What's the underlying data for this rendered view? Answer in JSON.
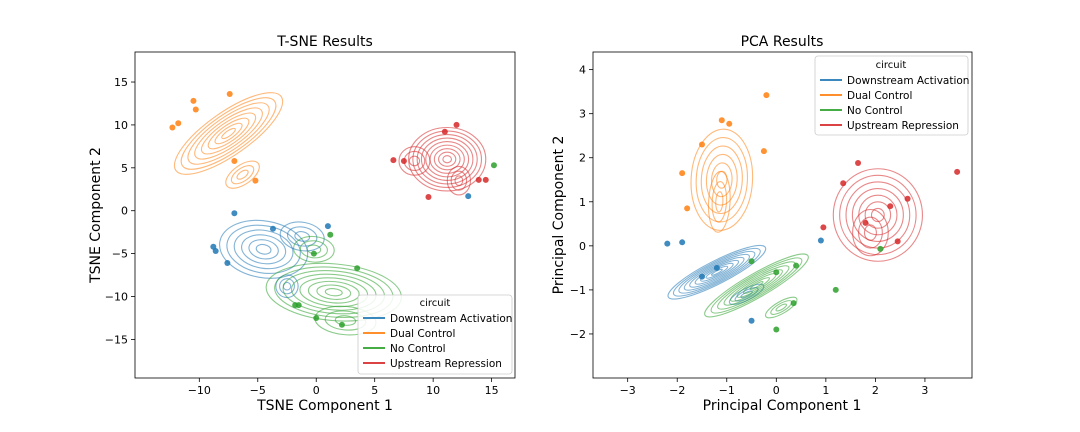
{
  "chart_data": [
    {
      "type": "scatter",
      "overlay": "kde-contours",
      "title": "T-SNE Results",
      "xlabel": "TSNE Component 1",
      "ylabel": "TSNE Component 2",
      "xlim": [
        -15.5,
        17
      ],
      "ylim": [
        -19.5,
        18.5
      ],
      "xticks": [
        -10,
        -5,
        0,
        5,
        10,
        15
      ],
      "yticks": [
        -15,
        -10,
        -5,
        0,
        5,
        10,
        15
      ],
      "xtick_labels": [
        "−10",
        "−5",
        "0",
        "5",
        "10",
        "15"
      ],
      "ytick_labels": [
        "−15",
        "−10",
        "−5",
        "0",
        "5",
        "10",
        "15"
      ],
      "grid": false,
      "legend": {
        "title": "circuit",
        "placement": "lower-right"
      },
      "series": [
        {
          "name": "Downstream Activation",
          "color": "#1f77b4",
          "points": [
            [
              -7,
              -0.3
            ],
            [
              -8.8,
              -4.2
            ],
            [
              -8.6,
              -4.7
            ],
            [
              -7.6,
              -6.1
            ],
            [
              -3.7,
              -2.1
            ],
            [
              1,
              -1.8
            ],
            [
              13,
              1.7
            ]
          ],
          "kde": {
            "cx": -4.5,
            "cy": -4.5,
            "sx": 3.8,
            "sy": 3.3,
            "rot": 10,
            "levels": 6,
            "lobes": [
              [
                -1.2,
                -3,
                0.5,
                0.5
              ],
              [
                -2.5,
                -8.8,
                0.25,
                0.4
              ]
            ]
          }
        },
        {
          "name": "Dual Control",
          "color": "#ff7f0e",
          "points": [
            [
              -12.3,
              9.7
            ],
            [
              -11.8,
              10.2
            ],
            [
              -10.5,
              12.8
            ],
            [
              -10.3,
              11.8
            ],
            [
              -7.4,
              13.6
            ],
            [
              -7,
              5.8
            ],
            [
              -5.2,
              3.5
            ]
          ],
          "kde": {
            "cx": -7.5,
            "cy": 9,
            "sx": 5.5,
            "sy": 2.5,
            "rot": -35,
            "levels": 8,
            "lobes": [
              [
                -6.3,
                4.2,
                0.3,
                0.45
              ]
            ]
          }
        },
        {
          "name": "No Control",
          "color": "#2ca02c",
          "points": [
            [
              -0.2,
              -5
            ],
            [
              1.2,
              -2.8
            ],
            [
              3.5,
              -6.7
            ],
            [
              -1.5,
              -11
            ],
            [
              -1.8,
              -11
            ],
            [
              0,
              -12.5
            ],
            [
              2.2,
              -13.3
            ],
            [
              15.2,
              5.3
            ]
          ],
          "kde": {
            "cx": 1.5,
            "cy": -9.5,
            "sx": 5.8,
            "sy": 3.3,
            "rot": 5,
            "levels": 8,
            "lobes": [
              [
                2.5,
                -12.8,
                0.45,
                0.5
              ],
              [
                -0.2,
                -4.5,
                0.3,
                0.45
              ]
            ]
          }
        },
        {
          "name": "Upstream Repression",
          "color": "#d62728",
          "points": [
            [
              6.6,
              5.9
            ],
            [
              7.5,
              5.8
            ],
            [
              9.6,
              1.6
            ],
            [
              11,
              9.2
            ],
            [
              12,
              10
            ],
            [
              13.9,
              3.6
            ],
            [
              14.5,
              3.6
            ]
          ],
          "kde": {
            "cx": 11.2,
            "cy": 6,
            "sx": 3.3,
            "sy": 3.7,
            "rot": 0,
            "levels": 9,
            "lobes": [
              [
                8.4,
                5.8,
                0.4,
                0.45
              ],
              [
                12.2,
                3.5,
                0.3,
                0.45
              ]
            ]
          }
        }
      ]
    },
    {
      "type": "scatter",
      "overlay": "kde-contours",
      "title": "PCA Results",
      "xlabel": "Principal Component 1",
      "ylabel": "Principal Component 2",
      "xlim": [
        -3.7,
        3.95
      ],
      "ylim": [
        -3.0,
        4.4
      ],
      "xticks": [
        -3,
        -2,
        -1,
        0,
        1,
        2,
        3
      ],
      "yticks": [
        -2,
        -1,
        0,
        1,
        2,
        3,
        4
      ],
      "xtick_labels": [
        "−3",
        "−2",
        "−1",
        "0",
        "1",
        "2",
        "3"
      ],
      "ytick_labels": [
        "−2",
        "−1",
        "0",
        "1",
        "2",
        "3",
        "4"
      ],
      "grid": false,
      "legend": {
        "title": "circuit",
        "placement": "upper-right"
      },
      "series": [
        {
          "name": "Downstream Activation",
          "color": "#1f77b4",
          "points": [
            [
              -2.2,
              0.05
            ],
            [
              -1.9,
              0.08
            ],
            [
              -1.5,
              -0.7
            ],
            [
              -1.2,
              -0.5
            ],
            [
              -0.5,
              -1.7
            ],
            [
              0.9,
              0.12
            ]
          ],
          "kde": {
            "cx": -1.2,
            "cy": -0.6,
            "sx": 1.1,
            "sy": 0.26,
            "rot": -27,
            "levels": 9,
            "lobes": [
              [
                -0.6,
                -1.1,
                0.35,
                0.5
              ]
            ]
          }
        },
        {
          "name": "Dual Control",
          "color": "#ff7f0e",
          "points": [
            [
              -1.8,
              0.85
            ],
            [
              -1.5,
              2.3
            ],
            [
              -1.1,
              2.85
            ],
            [
              -0.95,
              2.77
            ],
            [
              -0.2,
              3.42
            ],
            [
              -0.25,
              2.15
            ],
            [
              -1.9,
              1.65
            ]
          ],
          "kde": {
            "cx": -1.1,
            "cy": 1.5,
            "sx": 0.62,
            "sy": 1.15,
            "rot": 3,
            "levels": 6,
            "lobes": [
              [
                -1.15,
                1.0,
                0.35,
                0.6
              ]
            ]
          }
        },
        {
          "name": "No Control",
          "color": "#2ca02c",
          "points": [
            [
              -0.5,
              -0.35
            ],
            [
              0,
              -0.6
            ],
            [
              0.4,
              -0.45
            ],
            [
              0.35,
              -1.3
            ],
            [
              0,
              -1.9
            ],
            [
              1.2,
              -1.0
            ],
            [
              2.1,
              -0.07
            ]
          ],
          "kde": {
            "cx": -0.4,
            "cy": -0.9,
            "sx": 1.2,
            "sy": 0.27,
            "rot": -30,
            "levels": 8,
            "lobes": [
              [
                0.1,
                -1.4,
                0.3,
                0.5
              ]
            ]
          }
        },
        {
          "name": "Upstream Repression",
          "color": "#d62728",
          "points": [
            [
              1.35,
              1.42
            ],
            [
              1.65,
              1.88
            ],
            [
              1.8,
              0.52
            ],
            [
              2.3,
              0.9
            ],
            [
              2.45,
              0.1
            ],
            [
              2.65,
              1.07
            ],
            [
              3.65,
              1.68
            ],
            [
              0.95,
              0.42
            ]
          ],
          "kde": {
            "cx": 2.05,
            "cy": 0.7,
            "sx": 0.9,
            "sy": 1.05,
            "rot": 0,
            "levels": 7,
            "lobes": [
              [
                1.9,
                0.3,
                0.4,
                0.5
              ]
            ]
          }
        }
      ]
    }
  ]
}
